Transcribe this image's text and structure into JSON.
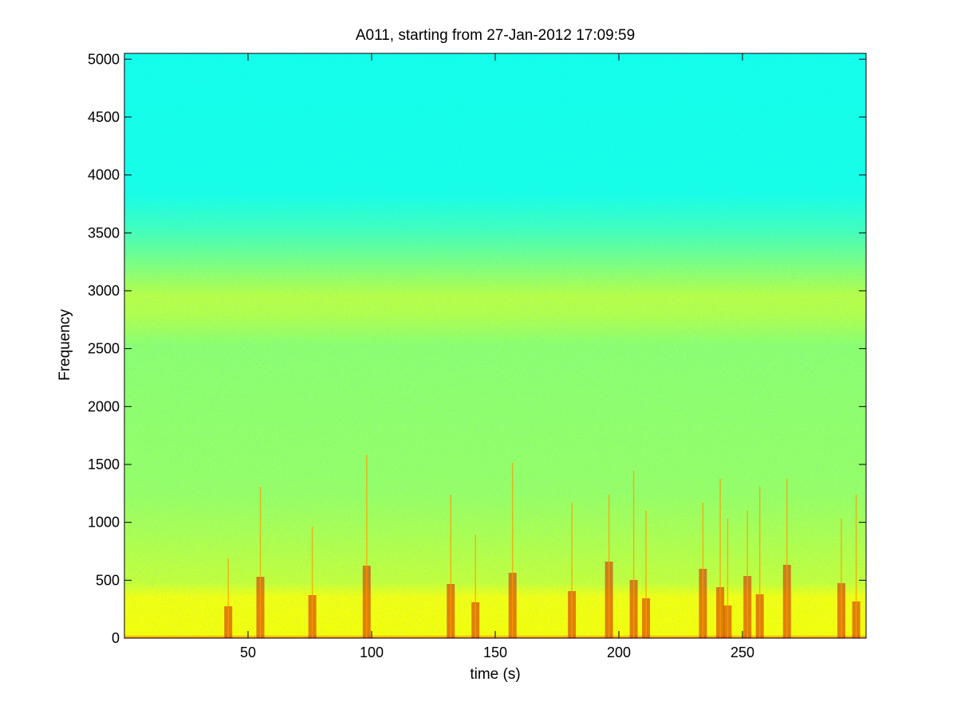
{
  "chart_data": {
    "type": "heatmap",
    "title": "A011, starting from 27-Jan-2012 17:09:59",
    "xlabel": "time (s)",
    "ylabel": "Frequency",
    "xlim": [
      0,
      300
    ],
    "ylim": [
      0,
      5050
    ],
    "xticks": [
      50,
      100,
      150,
      200,
      250
    ],
    "xtick_labels": [
      "50",
      "100",
      "150",
      "200",
      "250"
    ],
    "yticks": [
      0,
      500,
      1000,
      1500,
      2000,
      2500,
      3000,
      3500,
      4000,
      4500,
      5000
    ],
    "ytick_labels": [
      "0",
      "500",
      "1000",
      "1500",
      "2000",
      "2500",
      "3000",
      "3500",
      "4000",
      "4500",
      "5000"
    ],
    "colormap": "jet",
    "grid": false,
    "bands": [
      {
        "freq_range": [
          0,
          60
        ],
        "level": "high"
      },
      {
        "freq_range": [
          60,
          450
        ],
        "level": "medium-high"
      },
      {
        "freq_range": [
          450,
          3550
        ],
        "level": "medium"
      },
      {
        "freq_range": [
          2700,
          2950
        ],
        "level": "medium-high"
      },
      {
        "freq_range": [
          3550,
          5050
        ],
        "level": "low"
      }
    ],
    "transients_time_s": [
      42,
      55,
      76,
      98,
      132,
      142,
      157,
      181,
      196,
      206,
      211,
      234,
      241,
      244,
      252,
      257,
      268,
      290,
      296
    ]
  }
}
